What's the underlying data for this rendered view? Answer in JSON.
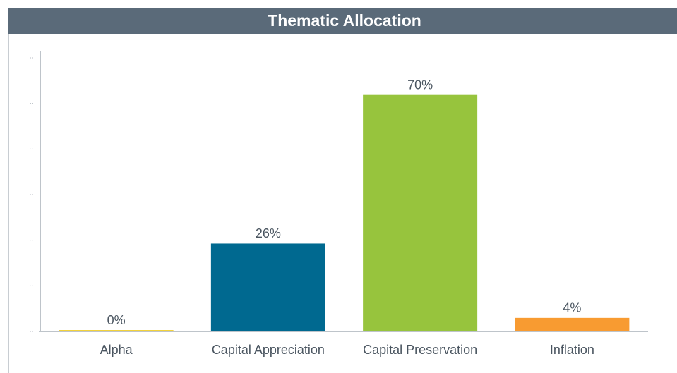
{
  "chart_data": {
    "type": "bar",
    "title": "Thematic Allocation",
    "categories": [
      "Alpha",
      "Capital Appreciation",
      "Capital Preservation",
      "Inflation"
    ],
    "values": [
      0,
      26,
      70,
      4
    ],
    "value_labels": [
      "0%",
      "26%",
      "70%",
      "4%"
    ],
    "colors": [
      "#f2d23c",
      "#006990",
      "#97c43d",
      "#f89b31"
    ],
    "ylim": [
      0,
      81
    ],
    "yticks": [
      0,
      13.5,
      27,
      40.5,
      54,
      67.5,
      81
    ]
  }
}
